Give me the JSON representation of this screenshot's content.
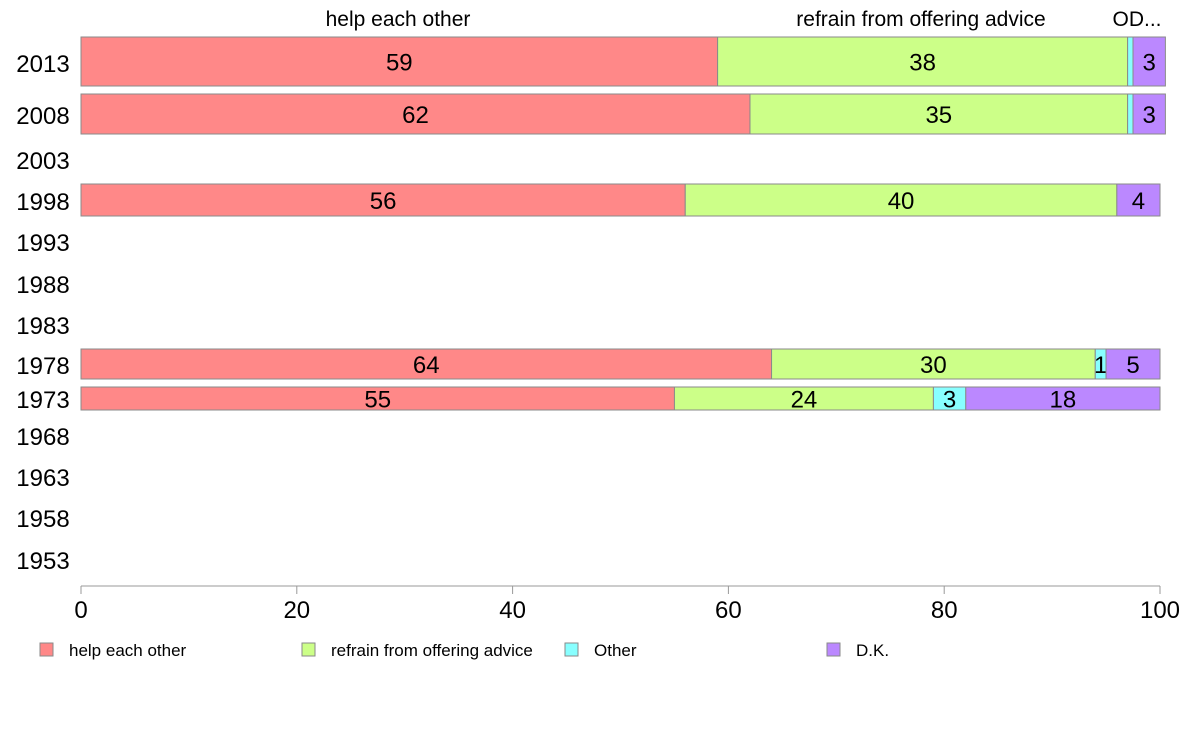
{
  "chart_data": {
    "type": "bar",
    "orientation": "horizontal",
    "stacked": true,
    "header_labels": [
      "help each other",
      "refrain from offering advice",
      "OD..."
    ],
    "categories": [
      "2013",
      "2008",
      "2003",
      "1998",
      "1993",
      "1988",
      "1983",
      "1978",
      "1973",
      "1968",
      "1963",
      "1958",
      "1953"
    ],
    "series": [
      {
        "name": "help each other",
        "color": "#ff8888",
        "values": [
          59,
          62,
          null,
          56,
          null,
          null,
          null,
          64,
          55,
          null,
          null,
          null,
          null
        ]
      },
      {
        "name": "refrain from offering advice",
        "color": "#ccff88",
        "values": [
          38,
          35,
          null,
          40,
          null,
          null,
          null,
          30,
          24,
          null,
          null,
          null,
          null
        ]
      },
      {
        "name": "Other",
        "color": "#88ffff",
        "values": [
          0.5,
          0.5,
          null,
          0,
          null,
          null,
          null,
          1,
          3,
          null,
          null,
          null,
          null
        ]
      },
      {
        "name": "D.K.",
        "color": "#bb88ff",
        "values": [
          3,
          3,
          null,
          4,
          null,
          null,
          null,
          5,
          18,
          null,
          null,
          null,
          null
        ]
      }
    ],
    "xlim": [
      0,
      100
    ],
    "x_ticks": [
      "0",
      "20",
      "40",
      "60",
      "80",
      "100"
    ],
    "legend_position": "bottom",
    "grid": false
  }
}
